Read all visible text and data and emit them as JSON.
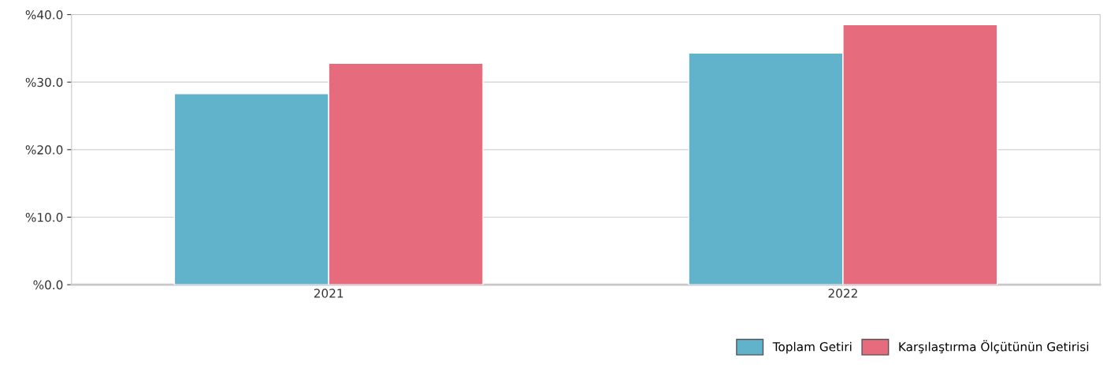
{
  "chart_data": {
    "type": "bar",
    "categories": [
      "2021",
      "2022"
    ],
    "series": [
      {
        "name": "Toplam Getiri",
        "color": "#61b3cc",
        "values": [
          28.3,
          34.3
        ]
      },
      {
        "name": "Karşılaştırma Ölçütünün Getirisi",
        "color": "#e66b7d",
        "values": [
          32.8,
          38.5
        ]
      }
    ],
    "ylim": [
      0,
      40
    ],
    "yticks": [
      {
        "value": 0,
        "label": "%0.0"
      },
      {
        "value": 10,
        "label": "%10.0"
      },
      {
        "value": 20,
        "label": "%20.0"
      },
      {
        "value": 30,
        "label": "%30.0"
      },
      {
        "value": 40,
        "label": "%40.0"
      }
    ],
    "grid": "y",
    "legend": "bottom right"
  }
}
